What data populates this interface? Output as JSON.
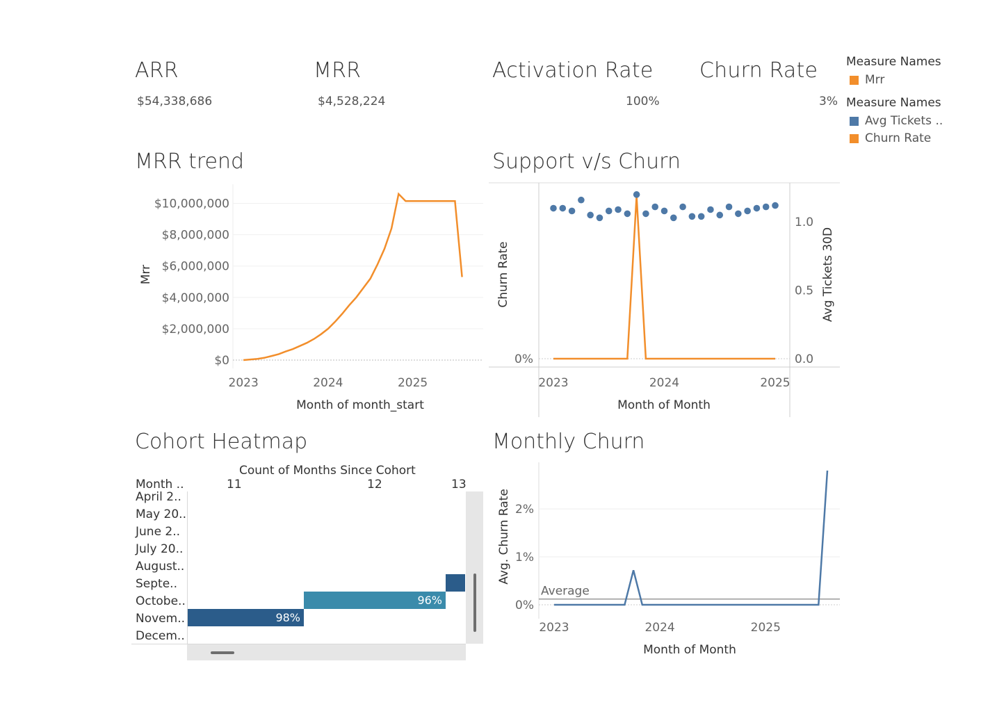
{
  "kpis": {
    "arr": {
      "title": "ARR",
      "value": "$54,338,686"
    },
    "mrr": {
      "title": "MRR",
      "value": "$4,528,224"
    },
    "activation": {
      "title": "Activation Rate",
      "value": "100%"
    },
    "churn": {
      "title": "Churn Rate",
      "value": "3%"
    }
  },
  "legends": {
    "first": {
      "title": "Measure Names",
      "items": [
        {
          "label": "Mrr",
          "color": "#f28e2b"
        }
      ]
    },
    "second": {
      "title": "Measure Names",
      "items": [
        {
          "label": "Avg Tickets ..",
          "color": "#4e79a7"
        },
        {
          "label": "Churn Rate",
          "color": "#f28e2b"
        }
      ]
    }
  },
  "sections": {
    "mrr_trend": "MRR trend",
    "support_churn": "Support v/s Churn",
    "cohort": "Cohort Heatmap",
    "monthly_churn": "Monthly Churn"
  },
  "chart_data": [
    {
      "id": "mrr_trend",
      "type": "line",
      "title": "MRR trend",
      "xlabel": "Month of month_start",
      "ylabel": "Mrr",
      "x_ticks": [
        "2023",
        "2024",
        "2025"
      ],
      "y_ticks": [
        "$0",
        "$2,000,000",
        "$4,000,000",
        "$6,000,000",
        "$8,000,000",
        "$10,000,000"
      ],
      "ylim": [
        0,
        11000000
      ],
      "series": [
        {
          "color": "#f28e2b",
          "x": [
            "2023-01",
            "2023-02",
            "2023-03",
            "2023-04",
            "2023-05",
            "2023-06",
            "2023-07",
            "2023-08",
            "2023-09",
            "2023-10",
            "2023-11",
            "2023-12",
            "2024-01",
            "2024-02",
            "2024-03",
            "2024-04",
            "2024-05",
            "2024-06",
            "2024-07",
            "2024-08",
            "2024-09",
            "2024-10",
            "2024-11",
            "2024-12",
            "2025-01",
            "2025-02",
            "2025-03",
            "2025-04",
            "2025-05",
            "2025-06",
            "2025-07",
            "2025-08"
          ],
          "values": [
            0,
            40000,
            80000,
            150000,
            260000,
            380000,
            550000,
            700000,
            900000,
            1100000,
            1350000,
            1650000,
            2000000,
            2450000,
            2950000,
            3500000,
            4000000,
            4600000,
            5200000,
            6100000,
            7100000,
            8400000,
            10600000,
            10150000,
            10150000,
            10150000,
            10150000,
            10150000,
            10150000,
            10150000,
            10150000,
            5300000
          ]
        }
      ]
    },
    {
      "id": "support_churn",
      "type": "line",
      "title": "Support v/s Churn",
      "xlabel": "Month of Month",
      "ylabel": "Churn Rate",
      "y2label": "Avg Tickets 30D",
      "x_ticks": [
        "2023",
        "2024",
        "2025"
      ],
      "y_ticks": [
        "0%"
      ],
      "y2_ticks": [
        "0.0",
        "0.5",
        "1.0"
      ],
      "y2lim": [
        0,
        1.25
      ],
      "series": [
        {
          "name": "Churn Rate",
          "color": "#f28e2b",
          "type": "line",
          "x": [
            "2023-01",
            "2023-02",
            "2023-03",
            "2023-04",
            "2023-05",
            "2023-06",
            "2023-07",
            "2023-08",
            "2023-09",
            "2023-10",
            "2023-11",
            "2023-12",
            "2024-01",
            "2024-02",
            "2024-03",
            "2024-04",
            "2024-05",
            "2024-06",
            "2024-07",
            "2024-08",
            "2024-09",
            "2024-10",
            "2024-11",
            "2024-12",
            "2025-01"
          ],
          "values": [
            0,
            0,
            0,
            0,
            0,
            0,
            0,
            0,
            0,
            1,
            0,
            0,
            0,
            0,
            0,
            0,
            0,
            0,
            0,
            0,
            0,
            0,
            0,
            0,
            0
          ]
        },
        {
          "name": "Avg Tickets 30D",
          "color": "#4e79a7",
          "type": "scatter",
          "x": [
            "2023-01",
            "2023-02",
            "2023-03",
            "2023-04",
            "2023-05",
            "2023-06",
            "2023-07",
            "2023-08",
            "2023-09",
            "2023-10",
            "2023-11",
            "2023-12",
            "2024-01",
            "2024-02",
            "2024-03",
            "2024-04",
            "2024-05",
            "2024-06",
            "2024-07",
            "2024-08",
            "2024-09",
            "2024-10",
            "2024-11",
            "2024-12",
            "2025-01"
          ],
          "values": [
            1.1,
            1.1,
            1.08,
            1.16,
            1.05,
            1.03,
            1.08,
            1.09,
            1.06,
            1.2,
            1.06,
            1.11,
            1.08,
            1.03,
            1.11,
            1.04,
            1.04,
            1.09,
            1.05,
            1.11,
            1.06,
            1.08,
            1.1,
            1.11,
            1.12
          ]
        }
      ]
    },
    {
      "id": "cohort",
      "type": "heatmap",
      "title": "Cohort Heatmap",
      "col_header": "Count of Months Since Cohort",
      "row_header": "Month ..",
      "columns": [
        "11",
        "12",
        "13"
      ],
      "rows": [
        "April 2..",
        "May 20..",
        "June 2..",
        "July 20..",
        "August..",
        "Septe..",
        "Octobe..",
        "Novem..",
        "Decem.."
      ],
      "cells": [
        {
          "row": "Septe..",
          "col": "13",
          "value": null,
          "color": "#2b5c8a"
        },
        {
          "row": "Octobe..",
          "col": "12",
          "value": "96%",
          "color": "#3a8bab"
        },
        {
          "row": "Novem..",
          "col": "11",
          "value": "98%",
          "color": "#2b5c8a"
        }
      ]
    },
    {
      "id": "monthly_churn",
      "type": "line",
      "title": "Monthly Churn",
      "xlabel": "Month of Month",
      "ylabel": "Avg. Churn Rate",
      "x_ticks": [
        "2023",
        "2024",
        "2025"
      ],
      "y_ticks": [
        "0%",
        "1%",
        "2%"
      ],
      "ylim": [
        0,
        2.9
      ],
      "reference_line": {
        "label": "Average",
        "value": 0.12
      },
      "series": [
        {
          "color": "#4e79a7",
          "x": [
            "2023-01",
            "2023-02",
            "2023-03",
            "2023-04",
            "2023-05",
            "2023-06",
            "2023-07",
            "2023-08",
            "2023-09",
            "2023-10",
            "2023-11",
            "2023-12",
            "2024-01",
            "2024-02",
            "2024-03",
            "2024-04",
            "2024-05",
            "2024-06",
            "2024-07",
            "2024-08",
            "2024-09",
            "2024-10",
            "2024-11",
            "2024-12",
            "2025-01",
            "2025-02",
            "2025-03",
            "2025-04",
            "2025-05",
            "2025-06",
            "2025-07",
            "2025-08"
          ],
          "values": [
            0,
            0,
            0,
            0,
            0,
            0,
            0,
            0,
            0,
            0.72,
            0,
            0,
            0,
            0,
            0,
            0,
            0,
            0,
            0,
            0,
            0,
            0,
            0,
            0,
            0,
            0,
            0,
            0,
            0,
            0,
            0,
            2.8
          ]
        }
      ]
    }
  ]
}
